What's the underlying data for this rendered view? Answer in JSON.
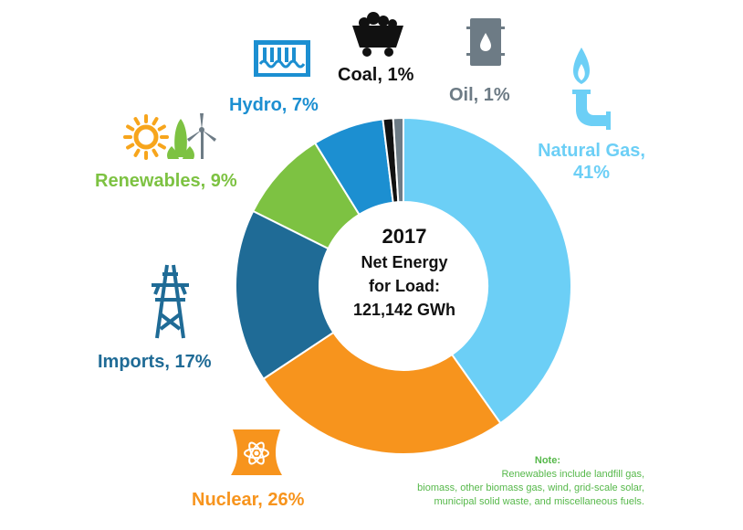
{
  "center": {
    "year": "2017",
    "line1": "Net Energy",
    "line2": "for Load:",
    "line3": "121,142 GWh"
  },
  "note": {
    "title": "Note:",
    "line1": "Renewables include landfill gas,",
    "line2": "biomass, other biomass gas, wind, grid-scale solar,",
    "line3": "municipal solid waste, and miscellaneous fuels."
  },
  "colors": {
    "natural_gas": "#6ccff6",
    "nuclear": "#f7941d",
    "imports": "#1f6b96",
    "renewables": "#7dc242",
    "hydro": "#1c8fd1",
    "coal": "#111111",
    "oil": "#6d7b85",
    "note_text": "#56b84a"
  },
  "icons": {
    "coal": "coal-cart-icon",
    "oil": "oil-barrel-icon",
    "natural_gas": "gas-flame-pipe-icon",
    "hydro": "hydro-dam-icon",
    "renewables": "sun-corn-wind-turbine-icon",
    "imports": "transmission-tower-icon",
    "nuclear": "nuclear-plant-icon"
  },
  "chart_data": {
    "type": "pie",
    "title": "",
    "categories": [
      "Natural Gas",
      "Nuclear",
      "Imports",
      "Renewables",
      "Hydro",
      "Coal",
      "Oil"
    ],
    "values": [
      41,
      26,
      17,
      9,
      7,
      1,
      1
    ],
    "unit": "%",
    "labels": [
      "Natural Gas,",
      "Nuclear, 26%",
      "Imports, 17%",
      "Renewables, 9%",
      "Hydro, 7%",
      "Coal, 1%",
      "Oil, 1%"
    ],
    "label_line2": {
      "natural_gas": "41%"
    },
    "legend": "none"
  }
}
